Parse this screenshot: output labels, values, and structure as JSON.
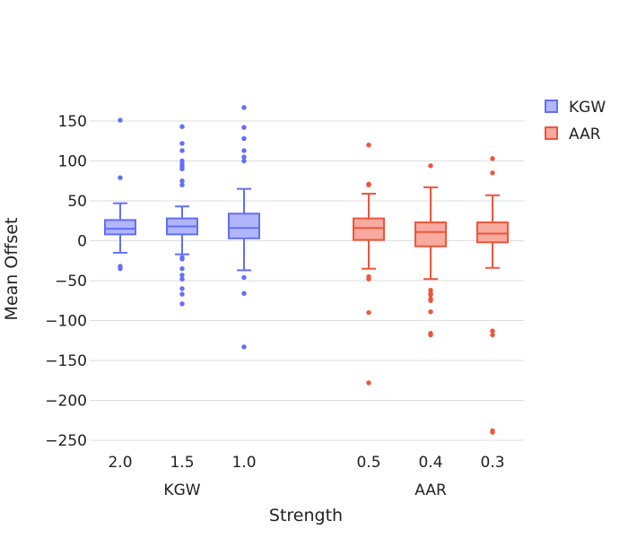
{
  "chart_data": {
    "type": "box",
    "title": "",
    "xlabel": "Strength",
    "ylabel": "Mean Offset",
    "ylim": [
      -265,
      185
    ],
    "yticks": [
      {
        "value": 150,
        "label": "150"
      },
      {
        "value": 100,
        "label": "100"
      },
      {
        "value": 50,
        "label": "50"
      },
      {
        "value": 0,
        "label": "0"
      },
      {
        "value": -50,
        "label": "−50"
      },
      {
        "value": -100,
        "label": "−100"
      },
      {
        "value": -150,
        "label": "−150"
      },
      {
        "value": -200,
        "label": "−200"
      },
      {
        "value": -250,
        "label": "−250"
      }
    ],
    "grid": true,
    "legend_position": "top-right",
    "groups": [
      {
        "name": "KGW",
        "label": "KGW"
      },
      {
        "name": "AAR",
        "label": "AAR"
      }
    ],
    "series": [
      {
        "name": "KGW",
        "color": "#636efa",
        "fill": "#b1b6fc",
        "boxes": [
          {
            "label": "2.0",
            "min": -15,
            "q1": 8,
            "median": 15,
            "q3": 26,
            "max": 47,
            "outliers": [
              151,
              79,
              -32,
              -35
            ]
          },
          {
            "label": "1.5",
            "min": -17,
            "q1": 8,
            "median": 18,
            "q3": 28,
            "max": 43,
            "outliers": [
              143,
              122,
              113,
              100,
              96,
              93,
              90,
              75,
              70,
              -21,
              -23,
              -35,
              -43,
              -48,
              -60,
              -67,
              -79
            ]
          },
          {
            "label": "1.0",
            "min": -37,
            "q1": 3,
            "median": 16,
            "q3": 34,
            "max": 65,
            "outliers": [
              167,
              142,
              128,
              113,
              105,
              100,
              -46,
              -66,
              -133
            ]
          }
        ]
      },
      {
        "name": "AAR",
        "color": "#ef553b",
        "fill": "#f7aa9d",
        "boxes": [
          {
            "label": "0.5",
            "min": -35,
            "q1": 1,
            "median": 16,
            "q3": 28,
            "max": 59,
            "outliers": [
              120,
              71,
              70,
              -45,
              -48,
              -90,
              -178
            ]
          },
          {
            "label": "0.4",
            "min": -48,
            "q1": -7,
            "median": 11,
            "q3": 23,
            "max": 67,
            "outliers": [
              94,
              -62,
              -66,
              -68,
              -73,
              -75,
              -89,
              -116,
              -118
            ]
          },
          {
            "label": "0.3",
            "min": -34,
            "q1": -2,
            "median": 9,
            "q3": 23,
            "max": 57,
            "outliers": [
              103,
              85,
              -113,
              -118,
              -238,
              -240
            ]
          }
        ]
      }
    ]
  }
}
